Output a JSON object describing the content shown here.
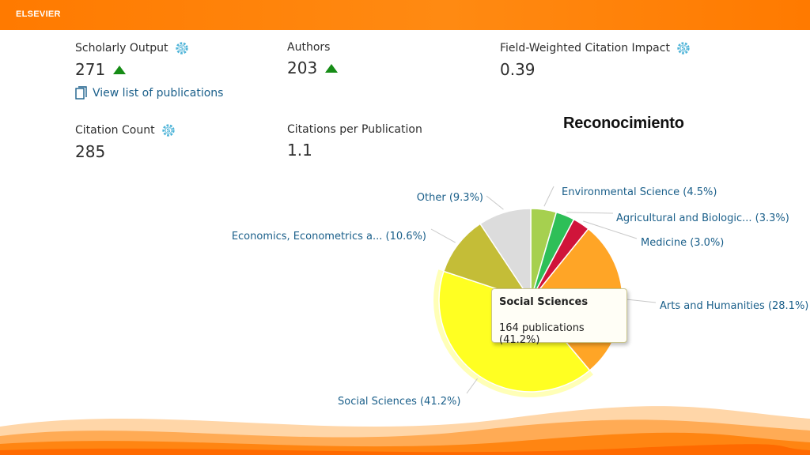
{
  "header": {
    "brand": "ELSEVIER"
  },
  "metrics": {
    "scholarly_output": {
      "label": "Scholarly Output",
      "value": "271"
    },
    "authors": {
      "label": "Authors",
      "value": "203"
    },
    "fwci": {
      "label": "Field-Weighted Citation Impact",
      "value": "0.39"
    },
    "citation_count": {
      "label": "Citation Count",
      "value": "285"
    },
    "citations_per_pub": {
      "label": "Citations per Publication",
      "value": "1.1"
    }
  },
  "links": {
    "view_list": "View list of publications"
  },
  "title": "Reconocimiento",
  "tooltip": {
    "title": "Social Sciences",
    "body": "164 publications (41.2%)"
  },
  "colors": {
    "accent": "#ff7a00",
    "link": "#1a5f8a",
    "up": "#168c16"
  },
  "chart_data": {
    "type": "pie",
    "slices": [
      {
        "label": "Environmental Science (4.5%)",
        "value": 4.5,
        "color": "#a6d04f"
      },
      {
        "label": "Agricultural and Biologic... (3.3%)",
        "value": 3.3,
        "color": "#2ebf58"
      },
      {
        "label": "Medicine (3.0%)",
        "value": 3.0,
        "color": "#d0143a"
      },
      {
        "label": "Arts and Humanities (28.1%)",
        "value": 28.1,
        "color": "#ffa526"
      },
      {
        "label": "Social Sciences (41.2%)",
        "value": 41.2,
        "color": "#ffff22",
        "highlighted": true
      },
      {
        "label": "Economics, Econometrics a... (10.6%)",
        "value": 10.6,
        "color": "#c4bd37"
      },
      {
        "label": "Other (9.3%)",
        "value": 9.3,
        "color": "#dcdcdc"
      }
    ]
  }
}
